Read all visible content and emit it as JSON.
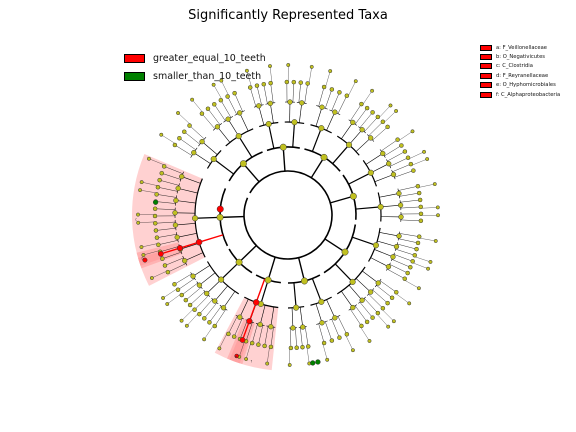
{
  "title": "Significantly Represented Taxa",
  "legend": [
    {
      "label": "greater_equal_10_teeth",
      "color": "#ff0000"
    },
    {
      "label": "smaller_than_10_teeth",
      "color": "#008000"
    }
  ],
  "clade_legend": [
    {
      "label": "a: F_Veillonellaceae"
    },
    {
      "label": "b: O_Negativicutes"
    },
    {
      "label": "c: C_Clostridia"
    },
    {
      "label": "d: F_Reyranellaceae"
    },
    {
      "label": "e: O_Hyphomicrobiales"
    },
    {
      "label": "f: C_Alphaproteobacteria"
    }
  ],
  "colors": {
    "nonsignificant": "#c0c020",
    "enriched_high": "#ff0000",
    "enriched_low": "#008000",
    "shade": "#ff9999"
  },
  "chart_data": {
    "type": "cladogram",
    "title": "Significantly Represented Taxa",
    "highlighted_clades": [
      {
        "letter": "a",
        "name": "F_Veillonellaceae",
        "group": "greater_equal_10_teeth"
      },
      {
        "letter": "b",
        "name": "O_Negativicutes",
        "group": "greater_equal_10_teeth"
      },
      {
        "letter": "c",
        "name": "C_Clostridia",
        "group": "greater_equal_10_teeth"
      },
      {
        "letter": "d",
        "name": "F_Reyranellaceae",
        "group": "greater_equal_10_teeth"
      },
      {
        "letter": "e",
        "name": "O_Hyphomicrobiales",
        "group": "greater_equal_10_teeth"
      },
      {
        "letter": "f",
        "name": "C_Alphaproteobacteria",
        "group": "greater_equal_10_teeth"
      }
    ],
    "enriched_nodes": [
      {
        "group": "greater_equal_10_teeth",
        "count": 8
      },
      {
        "group": "smaller_than_10_teeth",
        "count": 3
      }
    ]
  }
}
